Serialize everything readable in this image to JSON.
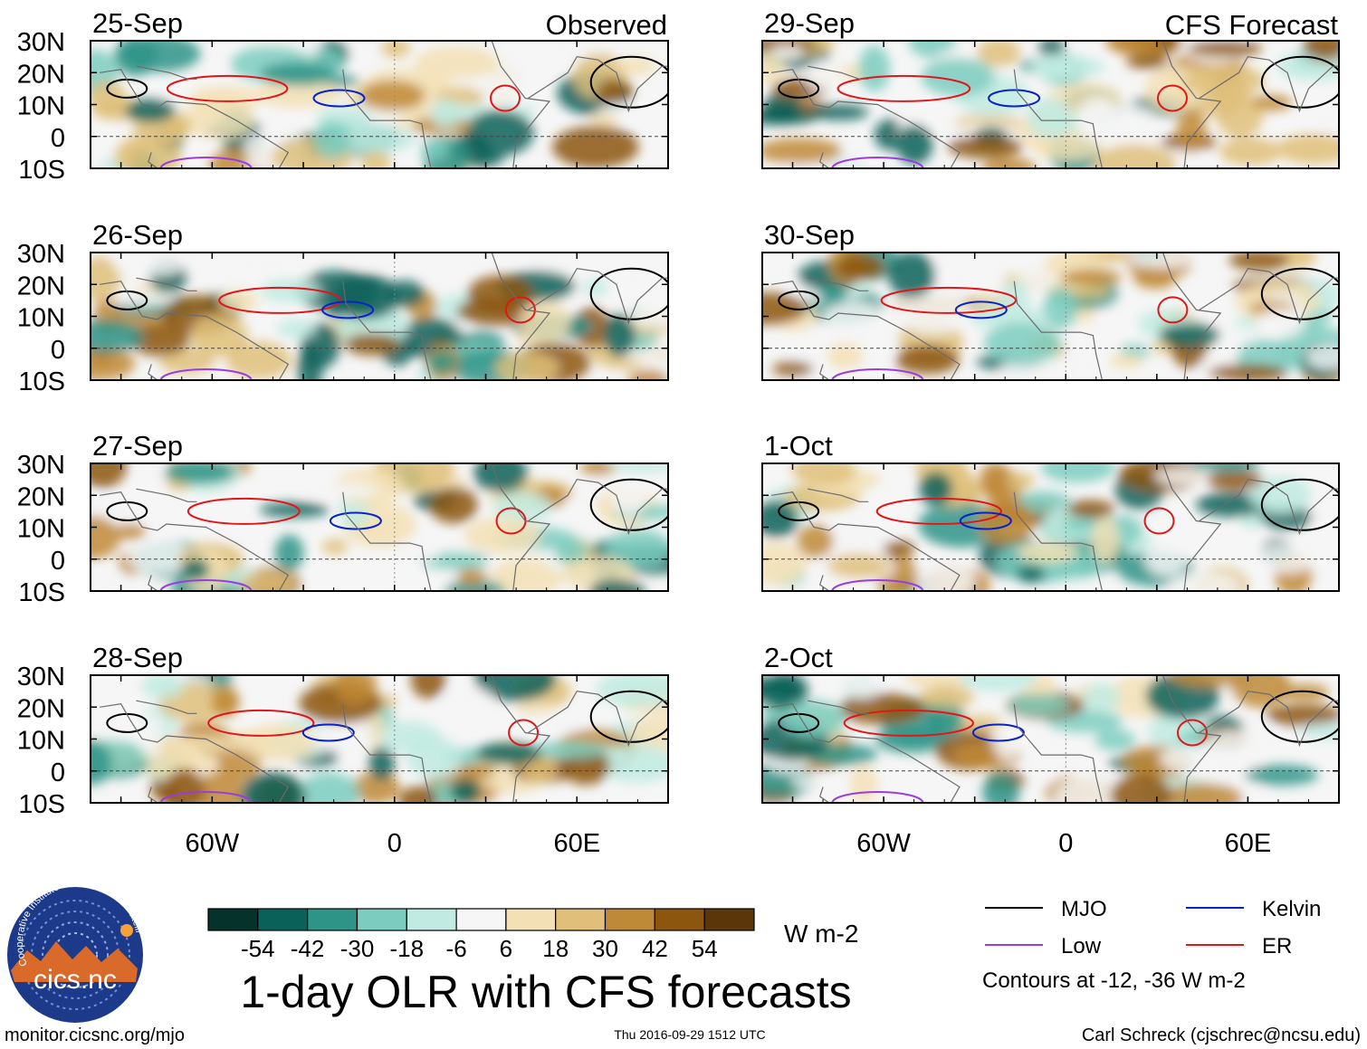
{
  "chart_data": {
    "type": "heatmap",
    "title": "1-day OLR with CFS forecasts",
    "units": "W m-2",
    "observed_label": "Observed",
    "forecast_label": "CFS Forecast",
    "lat_ticks": [
      "30N",
      "20N",
      "10N",
      "0",
      "10S"
    ],
    "lon_ticks": [
      "60W",
      "0",
      "60E"
    ],
    "lat_range": [
      -10,
      30
    ],
    "lon_range": [
      -100,
      90
    ],
    "observed_dates": [
      "25-Sep",
      "26-Sep",
      "27-Sep",
      "28-Sep"
    ],
    "forecast_dates": [
      "29-Sep",
      "30-Sep",
      "1-Oct",
      "2-Oct"
    ],
    "colorbar": {
      "labels": [
        "-54",
        "-42",
        "-30",
        "-18",
        "-6",
        "6",
        "18",
        "30",
        "42",
        "54"
      ],
      "colors": [
        "#05332c",
        "#0a6159",
        "#2e9488",
        "#7ccdbf",
        "#c1ebe2",
        "#f6f6f6",
        "#f3e1b5",
        "#dfbf7a",
        "#bf8a37",
        "#8c560f",
        "#5a3608"
      ]
    },
    "legend": {
      "items": [
        {
          "label": "MJO",
          "color": "#000000"
        },
        {
          "label": "Kelvin",
          "color": "#0a23c8"
        },
        {
          "label": "Low",
          "color": "#9a3ce0"
        },
        {
          "label": "ER",
          "color": "#e0161a"
        }
      ],
      "contours_note": "Contours at -12, -36 W m-2"
    }
  },
  "footer": {
    "url": "monitor.cicsnc.org/mjo",
    "timestamp": "Thu 2016-09-29 1512 UTC",
    "author": "Carl Schreck (cjschrec@ncsu.edu)"
  },
  "logo": {
    "text": "cics.nc",
    "ring_text": "Cooperative Institute for Climate and Satellites"
  }
}
